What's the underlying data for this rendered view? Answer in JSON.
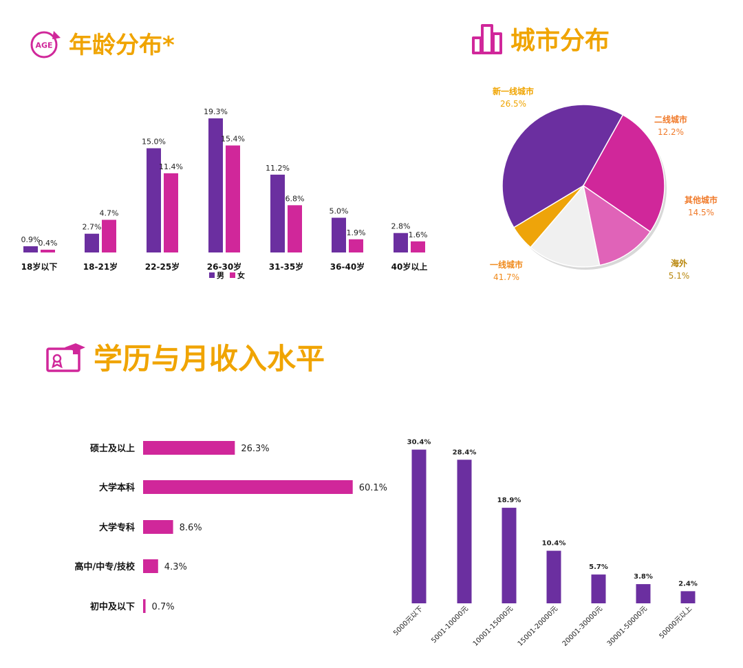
{
  "colors": {
    "male": "#6b2fa0",
    "female": "#d0279a",
    "title": "#f0a400"
  },
  "headers": {
    "age": {
      "icon": "age-badge-icon",
      "icon_text": "AGE",
      "title": "年龄分布*"
    },
    "city": {
      "icon": "city-buildings-icon",
      "title": "城市分布"
    },
    "edu": {
      "icon": "graduation-certificate-icon",
      "title": "学历与月收入水平"
    }
  },
  "chart_data": [
    {
      "type": "bar",
      "categories": [
        "18岁以下",
        "18-21岁",
        "22-25岁",
        "26-30岁",
        "31-35岁",
        "36-40岁",
        "40岁以上"
      ],
      "series": [
        {
          "name": "男",
          "values": [
            0.9,
            2.7,
            15.0,
            19.3,
            11.2,
            5.0,
            2.8
          ],
          "color": "#6b2fa0"
        },
        {
          "name": "女",
          "values": [
            0.4,
            4.7,
            11.4,
            15.4,
            6.8,
            1.9,
            1.6
          ],
          "color": "#d0279a"
        }
      ],
      "value_suffix": "%",
      "legend": "bottom-center"
    },
    {
      "type": "pie",
      "labels": [
        "一线城市",
        "新一线城市",
        "二线城市",
        "其他城市",
        "海外"
      ],
      "values": [
        41.7,
        26.5,
        12.2,
        14.5,
        5.1
      ],
      "colors": [
        "#6b2fa0",
        "#d0279a",
        "#e063b8",
        "#f0f0f0",
        "#eea40a"
      ],
      "label_colors": [
        "#f08a1c",
        "#f0a400",
        "#f07a2a",
        "#f07a2a",
        "#b8860b"
      ],
      "value_suffix": "%"
    },
    {
      "type": "bar",
      "orientation": "horizontal",
      "categories": [
        "硕士及以上",
        "大学本科",
        "大学专科",
        "高中/中专/技校",
        "初中及以下"
      ],
      "values": [
        26.3,
        60.1,
        8.6,
        4.3,
        0.7
      ],
      "color": "#d0279a",
      "value_suffix": "%"
    },
    {
      "type": "bar",
      "categories": [
        "5000元以下",
        "5001-10000元",
        "10001-15000元",
        "15001-20000元",
        "20001-30000元",
        "30001-50000元",
        "50000元以上"
      ],
      "values": [
        30.4,
        28.4,
        18.9,
        10.4,
        5.7,
        3.8,
        2.4
      ],
      "color": "#6b2fa0",
      "value_suffix": "%"
    }
  ]
}
